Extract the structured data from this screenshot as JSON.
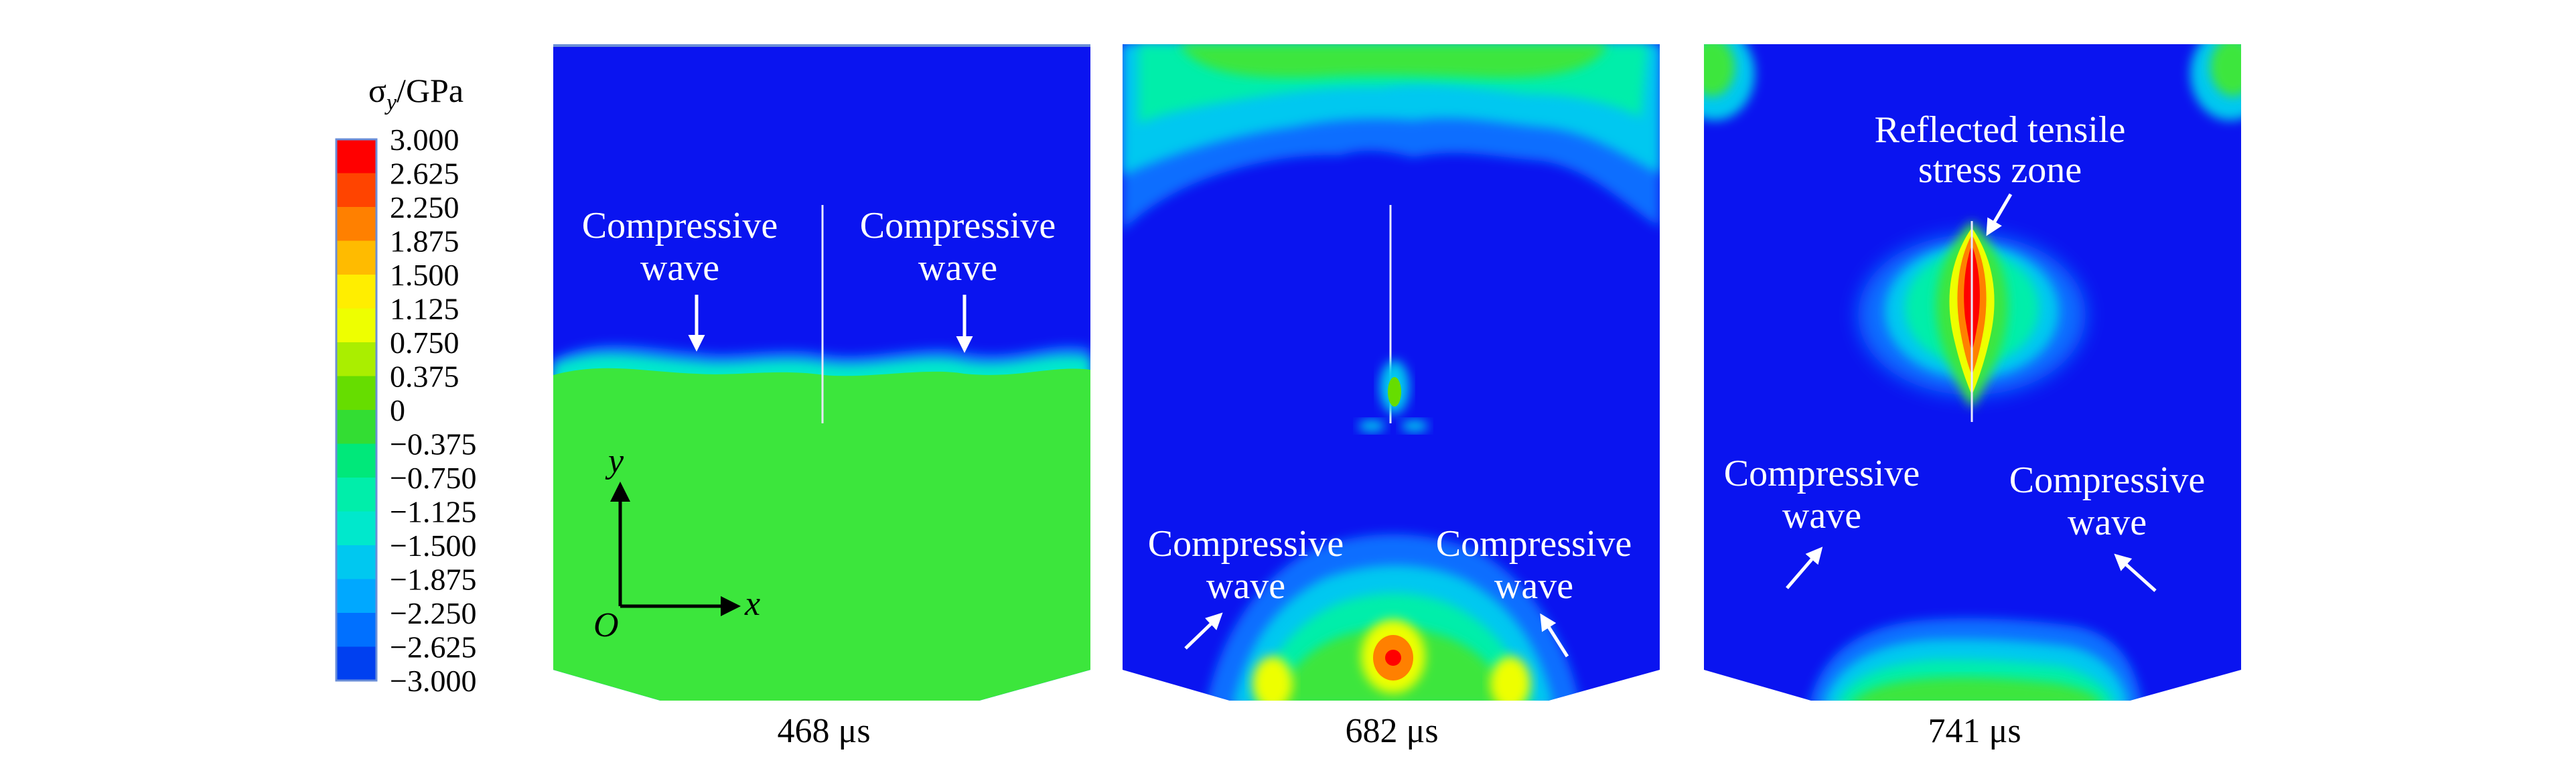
{
  "legend": {
    "title_symbol": "σ",
    "title_subscript": "y",
    "title_unit": "/GPa",
    "levels": [
      "3.000",
      "2.625",
      "2.250",
      "1.875",
      "1.500",
      "1.125",
      "0.750",
      "0.375",
      "0",
      "−0.375",
      "−0.750",
      "−1.125",
      "−1.500",
      "−1.875",
      "−2.250",
      "−2.625",
      "−3.000"
    ],
    "colors": [
      "#ff0000",
      "#ff4400",
      "#ff8000",
      "#ffbb00",
      "#ffee00",
      "#eeff00",
      "#aaee00",
      "#66dd00",
      "#33dd33",
      "#00e87a",
      "#00eeaa",
      "#00e8cc",
      "#00c8f0",
      "#00a8ff",
      "#0070ff",
      "#0040f0"
    ]
  },
  "panels": [
    {
      "time_label": "468 μs",
      "annotations": [
        {
          "line1": "Compressive",
          "line2": "wave"
        },
        {
          "line1": "Compressive",
          "line2": "wave"
        }
      ],
      "axes": {
        "y_label": "y",
        "x_label": "x",
        "origin_label": "O"
      }
    },
    {
      "time_label": "682 μs",
      "annotations": [
        {
          "line1": "Compressive",
          "line2": "wave"
        },
        {
          "line1": "Compressive",
          "line2": "wave"
        }
      ]
    },
    {
      "time_label": "741 μs",
      "annotations": [
        {
          "line1": "Reflected tensile",
          "line2": "stress zone"
        },
        {
          "line1": "Compressive",
          "line2": "wave"
        },
        {
          "line1": "Compressive",
          "line2": "wave"
        }
      ]
    }
  ],
  "colors": {
    "deep_blue": "#0a14f0",
    "green": "#3ce63c",
    "mid_blue": "#0a6eff",
    "cyan": "#00c8f0",
    "teal": "#00eeaa",
    "yellow": "#eeff00",
    "orange": "#ff8000",
    "red": "#ff0000"
  }
}
